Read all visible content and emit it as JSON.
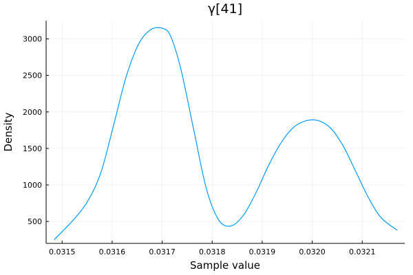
{
  "chart_data": {
    "type": "line",
    "title": "γ[41]",
    "xlabel": "Sample value",
    "ylabel": "Density",
    "xlim": [
      0.031468,
      0.032185
    ],
    "ylim": [
      200,
      3250
    ],
    "xticks": [
      {
        "value": 0.0315,
        "label": "0.0315"
      },
      {
        "value": 0.0316,
        "label": "0.0316"
      },
      {
        "value": 0.0317,
        "label": "0.0317"
      },
      {
        "value": 0.0318,
        "label": "0.0318"
      },
      {
        "value": 0.0319,
        "label": "0.0319"
      },
      {
        "value": 0.032,
        "label": "0.0320"
      },
      {
        "value": 0.0321,
        "label": "0.0321"
      }
    ],
    "yticks": [
      {
        "value": 500,
        "label": "500"
      },
      {
        "value": 1000,
        "label": "1000"
      },
      {
        "value": 1500,
        "label": "1500"
      },
      {
        "value": 2000,
        "label": "2000"
      },
      {
        "value": 2500,
        "label": "2500"
      },
      {
        "value": 3000,
        "label": "3000"
      }
    ],
    "grid": true,
    "legend": "none",
    "series": [
      {
        "color": "#009AFA",
        "x": [
          0.031484,
          0.031525,
          0.031553,
          0.031578,
          0.031603,
          0.031628,
          0.031653,
          0.031678,
          0.031703,
          0.031718,
          0.031738,
          0.031763,
          0.031788,
          0.031813,
          0.031838,
          0.031863,
          0.031888,
          0.031913,
          0.031938,
          0.031963,
          0.031988,
          0.032013,
          0.032038,
          0.032063,
          0.032088,
          0.032113,
          0.032138,
          0.03217
        ],
        "y": [
          250,
          540,
          800,
          1180,
          1820,
          2480,
          2930,
          3130,
          3140,
          3020,
          2570,
          1760,
          960,
          520,
          440,
          590,
          900,
          1270,
          1580,
          1790,
          1880,
          1880,
          1770,
          1520,
          1170,
          820,
          550,
          380
        ]
      }
    ]
  }
}
